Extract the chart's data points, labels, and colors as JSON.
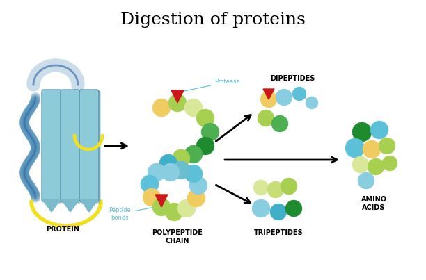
{
  "title": "Digestion of proteins",
  "title_fontsize": 18,
  "background_color": "#ffffff",
  "label_protein": "PROTEIN",
  "label_polypeptide": "POLYPEPTIDE\nCHAIN",
  "label_tripeptides": "TRIPEPTIDES",
  "label_dipeptides": "DIPEPTIDES",
  "label_amino": "AMINO\nACIDS",
  "label_protease": "Protease",
  "label_peptide_bonds": "Peptide\nbonds",
  "colors": {
    "light_blue": "#88CDE0",
    "sky_blue": "#5CC0D8",
    "teal": "#40B0C8",
    "med_blue": "#6BBDD0",
    "green": "#4CAF50",
    "dark_green": "#1E8B2E",
    "light_green": "#A8D050",
    "yellow_green": "#C8DC78",
    "pale_green": "#D8E898",
    "yellow": "#F0CC60",
    "orange_yellow": "#E8C040",
    "red": "#CC1818",
    "protein_ribbon": "#7BBCCC",
    "protein_sheet": "#8ECBD8",
    "protein_helix": "#5090B8",
    "protein_dark": "#4080A0",
    "yellow_loop": "#F0E020",
    "dark_blue_ribbon": "#3060A0",
    "connector": "#A0C8D8"
  }
}
